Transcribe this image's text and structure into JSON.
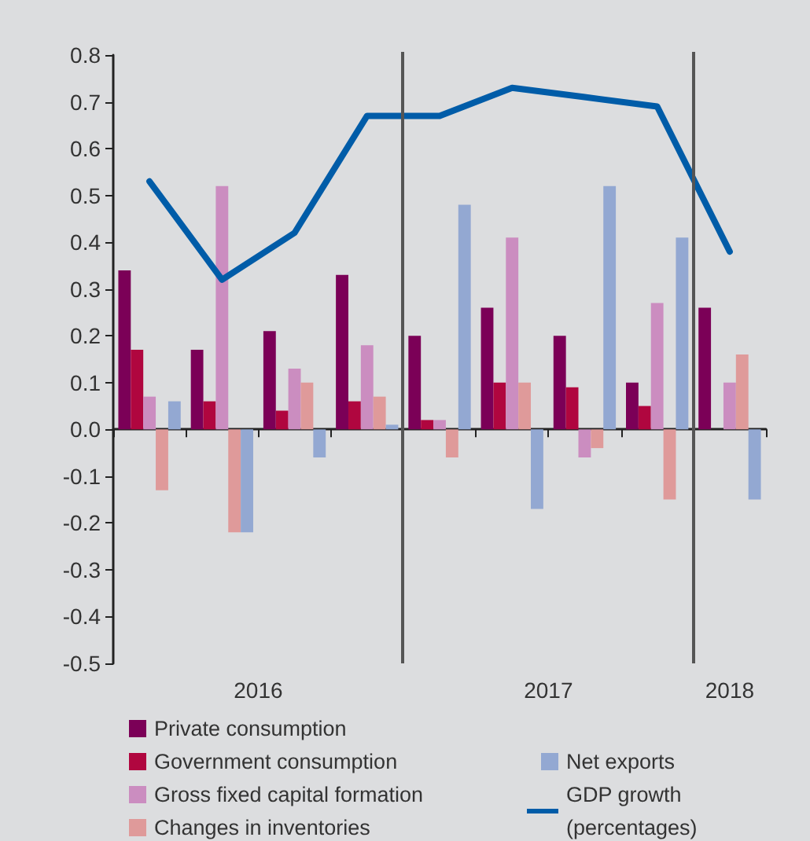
{
  "chart_data": {
    "type": "bar",
    "categories": [
      null,
      null,
      null,
      null,
      null,
      null,
      null,
      null,
      null
    ],
    "series": [
      {
        "name": "Private consumption",
        "color": "#7b0057",
        "values": [
          0.34,
          0.17,
          0.21,
          0.33,
          0.2,
          0.26,
          0.2,
          0.1,
          0.26
        ]
      },
      {
        "name": "Government consumption",
        "color": "#b0063f",
        "values": [
          0.17,
          0.06,
          0.04,
          0.06,
          0.02,
          0.1,
          0.09,
          0.05,
          null
        ]
      },
      {
        "name": "Gross fixed capital formation",
        "color": "#cb8dc0",
        "values": [
          0.07,
          0.52,
          0.13,
          0.18,
          0.02,
          0.41,
          -0.06,
          0.27,
          0.1
        ]
      },
      {
        "name": "Changes in inventories",
        "color": "#df9a9a",
        "values": [
          -0.13,
          -0.22,
          0.1,
          0.07,
          -0.06,
          0.1,
          -0.04,
          -0.15,
          0.16
        ]
      },
      {
        "name": "Net exports",
        "color": "#93a8d2",
        "values": [
          0.06,
          -0.22,
          -0.06,
          0.01,
          0.48,
          -0.17,
          0.52,
          0.41,
          -0.15
        ]
      },
      {
        "name": "GDP growth (percentages)",
        "type": "line",
        "color": "#005ca8",
        "marker": "none",
        "values": [
          0.53,
          0.32,
          0.42,
          0.67,
          0.67,
          0.73,
          0.71,
          0.69,
          0.38
        ]
      }
    ],
    "ylim": [
      -0.5,
      0.8
    ],
    "yticks": [
      -0.5,
      -0.4,
      -0.3,
      -0.2,
      -0.1,
      {
        "value": 0,
        "label": "0.0"
      },
      0.1,
      0.2,
      0.3,
      0.4,
      0.5,
      0.6,
      0.7,
      0.8
    ],
    "annotations": [
      "2016",
      "2017",
      "2018"
    ],
    "legend": "bottom"
  }
}
